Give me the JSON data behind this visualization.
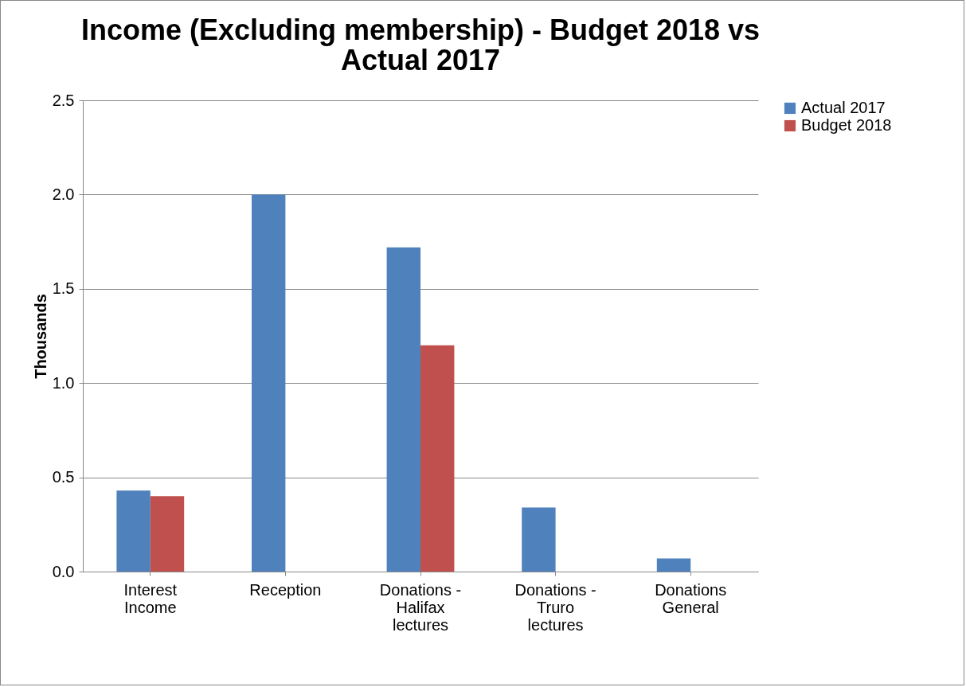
{
  "chart_data": {
    "type": "bar",
    "title": "Income (Excluding membership) - Budget 2018 vs Actual 2017",
    "ylabel": "Thousands",
    "categories": [
      "Interest Income",
      "Reception",
      "Donations - Halifax lectures",
      "Donations - Truro lectures",
      "Donations General"
    ],
    "series": [
      {
        "name": "Actual 2017",
        "color": "#4f81bd",
        "values": [
          0.43,
          2.0,
          1.72,
          0.34,
          0.07
        ]
      },
      {
        "name": "Budget 2018",
        "color": "#c0504d",
        "values": [
          0.4,
          null,
          1.2,
          null,
          null
        ]
      }
    ],
    "ylim": [
      0,
      2.5
    ],
    "yticks": [
      {
        "value": 0,
        "label": "0.0"
      },
      {
        "value": 0.5,
        "label": "0.5"
      },
      {
        "value": 1,
        "label": "1.0"
      },
      {
        "value": 1.5,
        "label": "1.5"
      },
      {
        "value": 2,
        "label": "2.0"
      },
      {
        "value": 2.5,
        "label": "2.5"
      }
    ],
    "grid": "y",
    "legend": "right"
  }
}
